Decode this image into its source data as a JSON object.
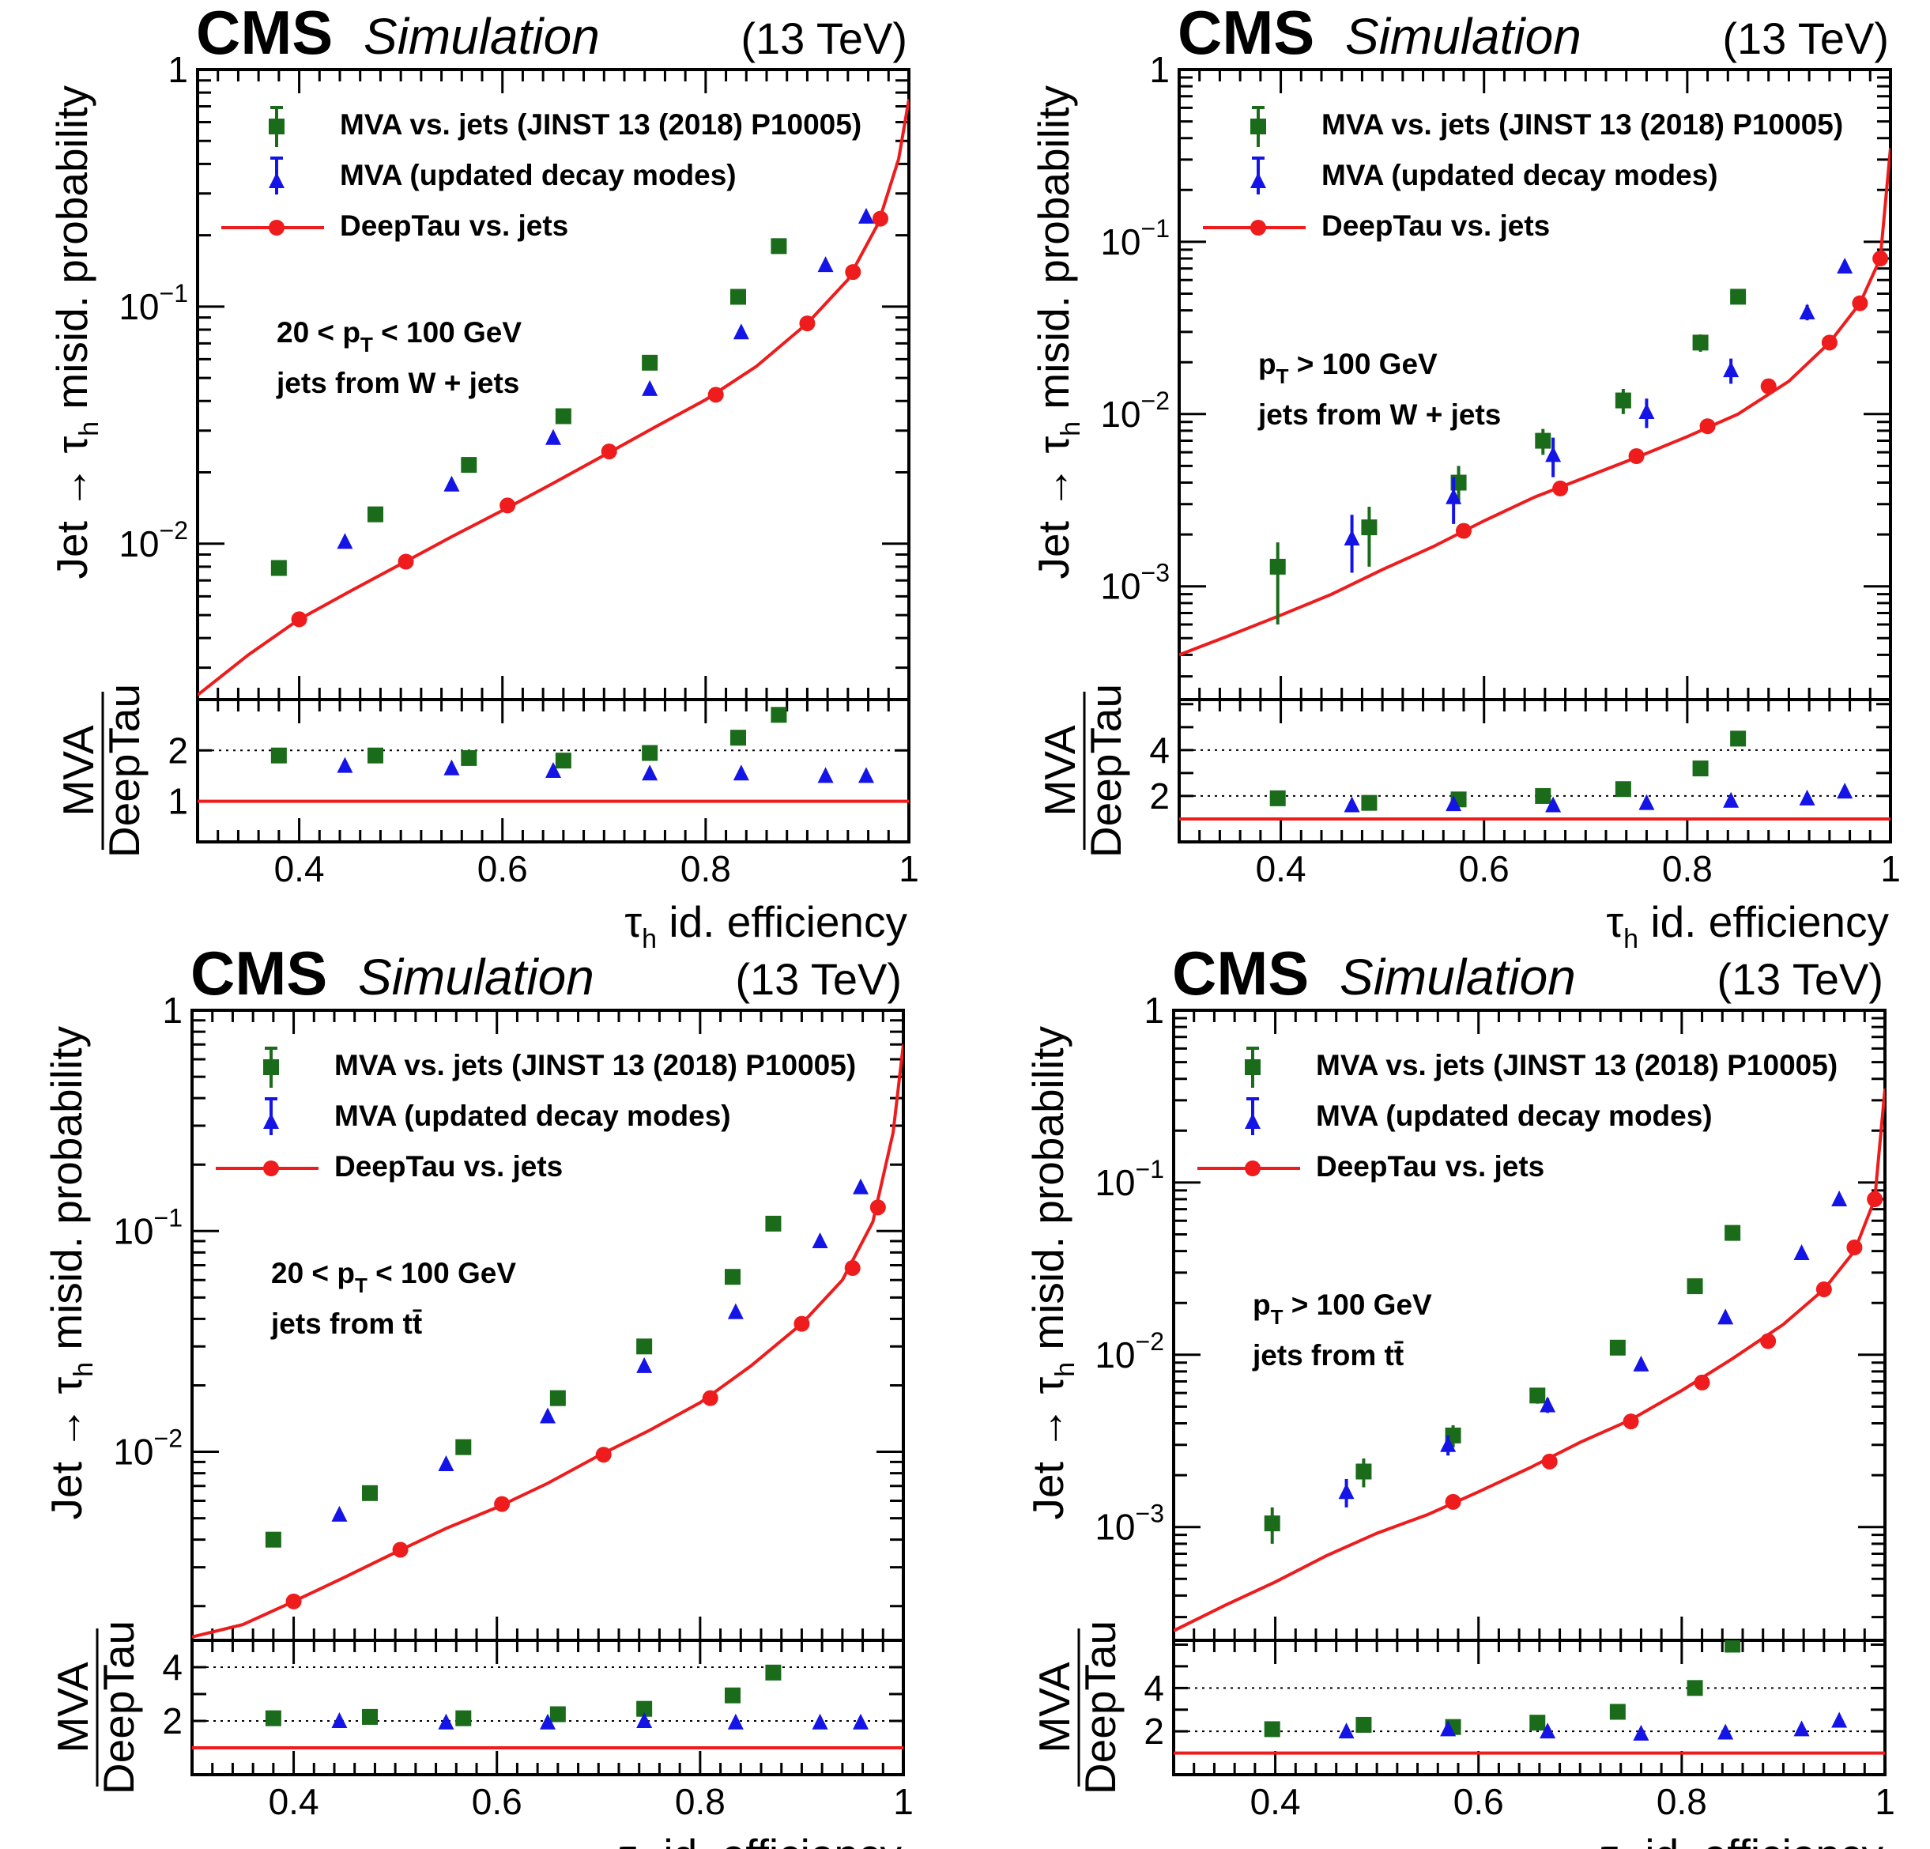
{
  "page": {
    "cms_label": "CMS",
    "simulation_label": "Simulation",
    "energy_label": "(13 TeV)"
  },
  "legend": {
    "mva_label": "MVA vs. jets (JINST 13 (2018) P10005)",
    "updated_label": "MVA (updated decay modes)",
    "deeptau_label": "DeepTau vs. jets"
  },
  "axes": {
    "xlabel_symbol": "τ",
    "xlabel_sub": "h",
    "xlabel_rest": " id. efficiency",
    "ylabel_pre": "Jet → τ",
    "ylabel_sub": "h",
    "ylabel_rest": " misid. probability",
    "ratio_num": "MVA",
    "ratio_den": "DeepTau"
  },
  "colors": {
    "mva": "#1a6b1a",
    "updated": "#1414e6",
    "deeptau": "#ee1c1c"
  },
  "chart_data": [
    {
      "type": "scatter",
      "y_scale": "log",
      "xlim": [
        0.3,
        1.0
      ],
      "ylim": [
        0.0022,
        1.0
      ],
      "ratio_ylim": [
        0.2,
        3.0
      ],
      "y_ticks": [
        {
          "pre": "1",
          "exp": ""
        },
        {
          "pre": "10",
          "exp": "−1"
        },
        {
          "pre": "10",
          "exp": "−2"
        }
      ],
      "y_tick_values": [
        1,
        0.1,
        0.01
      ],
      "x_ticks": [
        "0.4",
        "0.6",
        "0.8",
        "1"
      ],
      "x_tick_values": [
        0.4,
        0.6,
        0.8,
        1.0
      ],
      "ratio_ticks": [
        "2",
        "1"
      ],
      "ratio_tick_values": [
        2,
        1
      ],
      "ratio_dotted": [
        2
      ],
      "annotation": {
        "pt_pre": "20 < p",
        "pt_sub": "T",
        "pt_post": " < 100 GeV",
        "jets": "jets from W + jets"
      },
      "series": [
        {
          "name": "MVA vs. jets (JINST 13 (2018) P10005)",
          "marker": "square",
          "x": [
            0.38,
            0.475,
            0.567,
            0.66,
            0.745,
            0.832,
            0.872
          ],
          "y": [
            0.0079,
            0.0133,
            0.0215,
            0.0345,
            0.058,
            0.11,
            0.18
          ],
          "ratio": [
            1.9,
            1.9,
            1.85,
            1.8,
            1.95,
            2.25,
            2.7
          ]
        },
        {
          "name": "MVA (updated decay modes)",
          "marker": "triangle",
          "x": [
            0.445,
            0.55,
            0.65,
            0.745,
            0.835,
            0.918,
            0.958
          ],
          "y": [
            0.0102,
            0.0178,
            0.028,
            0.045,
            0.078,
            0.15,
            0.24
          ],
          "ratio": [
            1.7,
            1.65,
            1.6,
            1.55,
            1.55,
            1.5,
            1.5
          ]
        },
        {
          "name": "DeepTau vs. jets",
          "marker": "circle-line",
          "x": [
            0.4,
            0.505,
            0.605,
            0.705,
            0.81,
            0.9,
            0.945,
            0.972
          ],
          "y": [
            0.0048,
            0.0084,
            0.0145,
            0.0245,
            0.0425,
            0.085,
            0.14,
            0.235
          ],
          "curve_x": [
            0.3,
            0.35,
            0.4,
            0.45,
            0.5,
            0.55,
            0.6,
            0.65,
            0.7,
            0.75,
            0.8,
            0.85,
            0.9,
            0.94,
            0.97,
            0.99,
            1.0
          ],
          "curve_y": [
            0.0023,
            0.0034,
            0.0048,
            0.0063,
            0.0082,
            0.0107,
            0.0138,
            0.018,
            0.0236,
            0.031,
            0.0405,
            0.056,
            0.085,
            0.13,
            0.225,
            0.42,
            0.75
          ]
        }
      ]
    },
    {
      "type": "scatter",
      "y_scale": "log",
      "xlim": [
        0.3,
        1.0
      ],
      "ylim": [
        0.00022,
        1.0
      ],
      "ratio_ylim": [
        0.0,
        6.2
      ],
      "y_ticks": [
        {
          "pre": "1",
          "exp": ""
        },
        {
          "pre": "10",
          "exp": "−1"
        },
        {
          "pre": "10",
          "exp": "−2"
        },
        {
          "pre": "10",
          "exp": "−3"
        }
      ],
      "y_tick_values": [
        1,
        0.1,
        0.01,
        0.001
      ],
      "x_ticks": [
        "0.4",
        "0.6",
        "0.8",
        "1"
      ],
      "x_tick_values": [
        0.4,
        0.6,
        0.8,
        1.0
      ],
      "ratio_ticks": [
        "4",
        "2"
      ],
      "ratio_tick_values": [
        4,
        2
      ],
      "ratio_dotted": [
        4,
        2
      ],
      "annotation": {
        "pt_pre": "p",
        "pt_sub": "T",
        "pt_post": " > 100 GeV",
        "jets": "jets from W + jets"
      },
      "series": [
        {
          "name": "MVA vs. jets (JINST 13 (2018) P10005)",
          "marker": "square",
          "x": [
            0.397,
            0.487,
            0.575,
            0.658,
            0.737,
            0.813,
            0.85
          ],
          "y": [
            0.0013,
            0.0022,
            0.004,
            0.007,
            0.012,
            0.026,
            0.048
          ],
          "err_lo": [
            0.0007,
            0.0009,
            0.001,
            0.0012,
            0.002,
            0.003,
            0.004
          ],
          "err_hi": [
            0.0005,
            0.0007,
            0.001,
            0.0012,
            0.002,
            0.003,
            0.004
          ],
          "ratio": [
            1.9,
            1.7,
            1.85,
            2.0,
            2.3,
            3.2,
            4.5
          ]
        },
        {
          "name": "MVA (updated decay modes)",
          "marker": "triangle",
          "x": [
            0.47,
            0.57,
            0.668,
            0.76,
            0.843,
            0.918,
            0.955
          ],
          "y": [
            0.0019,
            0.0033,
            0.0058,
            0.0103,
            0.018,
            0.039,
            0.072
          ],
          "err_lo": [
            0.0007,
            0.001,
            0.0015,
            0.002,
            0.003,
            0.004,
            0.006
          ],
          "err_hi": [
            0.0007,
            0.001,
            0.0015,
            0.002,
            0.003,
            0.004,
            0.006
          ],
          "ratio": [
            1.6,
            1.65,
            1.6,
            1.7,
            1.8,
            1.9,
            2.2
          ]
        },
        {
          "name": "DeepTau vs. jets",
          "marker": "circle-line",
          "x": [
            0.58,
            0.675,
            0.75,
            0.82,
            0.88,
            0.94,
            0.97,
            0.99
          ],
          "y": [
            0.0021,
            0.0037,
            0.0057,
            0.0085,
            0.0145,
            0.026,
            0.044,
            0.08
          ],
          "curve_x": [
            0.3,
            0.35,
            0.4,
            0.45,
            0.5,
            0.55,
            0.6,
            0.65,
            0.7,
            0.75,
            0.8,
            0.85,
            0.9,
            0.94,
            0.97,
            0.99,
            1.0
          ],
          "curve_y": [
            0.0004,
            0.00052,
            0.00068,
            0.0009,
            0.00125,
            0.0017,
            0.0024,
            0.0033,
            0.0043,
            0.0056,
            0.0074,
            0.01,
            0.0155,
            0.026,
            0.044,
            0.08,
            0.35
          ]
        }
      ]
    },
    {
      "type": "scatter",
      "y_scale": "log",
      "xlim": [
        0.3,
        1.0
      ],
      "ylim": [
        0.0014,
        1.0
      ],
      "ratio_ylim": [
        0.0,
        5.0
      ],
      "y_ticks": [
        {
          "pre": "1",
          "exp": ""
        },
        {
          "pre": "10",
          "exp": "−1"
        },
        {
          "pre": "10",
          "exp": "−2"
        }
      ],
      "y_tick_values": [
        1,
        0.1,
        0.01
      ],
      "x_ticks": [
        "0.4",
        "0.6",
        "0.8",
        "1"
      ],
      "x_tick_values": [
        0.4,
        0.6,
        0.8,
        1.0
      ],
      "ratio_ticks": [
        "4",
        "2"
      ],
      "ratio_tick_values": [
        4,
        2
      ],
      "ratio_dotted": [
        4,
        2
      ],
      "annotation": {
        "pt_pre": "20 < p",
        "pt_sub": "T",
        "pt_post": " < 100 GeV",
        "jets": "jets from tt̄"
      },
      "series": [
        {
          "name": "MVA vs. jets (JINST 13 (2018) P10005)",
          "marker": "square",
          "x": [
            0.38,
            0.475,
            0.567,
            0.66,
            0.745,
            0.832,
            0.872
          ],
          "y": [
            0.004,
            0.0065,
            0.0105,
            0.0175,
            0.03,
            0.062,
            0.108
          ],
          "ratio": [
            2.1,
            2.15,
            2.1,
            2.25,
            2.45,
            2.95,
            3.8
          ]
        },
        {
          "name": "MVA (updated decay modes)",
          "marker": "triangle",
          "x": [
            0.445,
            0.55,
            0.65,
            0.745,
            0.835,
            0.918,
            0.958
          ],
          "y": [
            0.0052,
            0.0088,
            0.0145,
            0.0245,
            0.043,
            0.09,
            0.158
          ],
          "ratio": [
            2.0,
            1.95,
            1.95,
            2.0,
            1.95,
            1.95,
            1.95
          ]
        },
        {
          "name": "DeepTau vs. jets",
          "marker": "circle-line",
          "x": [
            0.4,
            0.505,
            0.605,
            0.705,
            0.81,
            0.9,
            0.95,
            0.975
          ],
          "y": [
            0.0021,
            0.0036,
            0.0058,
            0.0097,
            0.0175,
            0.038,
            0.068,
            0.128
          ],
          "curve_x": [
            0.3,
            0.35,
            0.4,
            0.45,
            0.5,
            0.55,
            0.6,
            0.65,
            0.7,
            0.75,
            0.8,
            0.85,
            0.9,
            0.94,
            0.97,
            0.99,
            1.0
          ],
          "curve_y": [
            0.00145,
            0.00165,
            0.0021,
            0.0027,
            0.0035,
            0.0045,
            0.0056,
            0.0072,
            0.0096,
            0.0125,
            0.0167,
            0.0245,
            0.038,
            0.06,
            0.11,
            0.28,
            0.7
          ]
        }
      ]
    },
    {
      "type": "scatter",
      "y_scale": "log",
      "xlim": [
        0.3,
        1.0
      ],
      "ylim": [
        0.00022,
        1.0
      ],
      "ratio_ylim": [
        0.0,
        6.2
      ],
      "y_ticks": [
        {
          "pre": "1",
          "exp": ""
        },
        {
          "pre": "10",
          "exp": "−1"
        },
        {
          "pre": "10",
          "exp": "−2"
        },
        {
          "pre": "10",
          "exp": "−3"
        }
      ],
      "y_tick_values": [
        1,
        0.1,
        0.01,
        0.001
      ],
      "x_ticks": [
        "0.4",
        "0.6",
        "0.8",
        "1"
      ],
      "x_tick_values": [
        0.4,
        0.6,
        0.8,
        1.0
      ],
      "ratio_ticks": [
        "4",
        "2"
      ],
      "ratio_tick_values": [
        4,
        2
      ],
      "ratio_dotted": [
        4,
        2
      ],
      "annotation": {
        "pt_pre": "p",
        "pt_sub": "T",
        "pt_post": " > 100 GeV",
        "jets": "jets from tt̄"
      },
      "series": [
        {
          "name": "MVA vs. jets (JINST 13 (2018) P10005)",
          "marker": "square",
          "x": [
            0.397,
            0.487,
            0.575,
            0.658,
            0.737,
            0.813,
            0.85
          ],
          "y": [
            0.00105,
            0.0021,
            0.0034,
            0.0058,
            0.011,
            0.025,
            0.051
          ],
          "err_lo": [
            0.00025,
            0.0004,
            0.0005,
            0.0006,
            0.001,
            0.002,
            0.003
          ],
          "err_hi": [
            0.00025,
            0.0004,
            0.0005,
            0.0006,
            0.001,
            0.002,
            0.003
          ],
          "ratio": [
            2.1,
            2.3,
            2.2,
            2.4,
            2.9,
            4.0,
            6.0
          ]
        },
        {
          "name": "MVA (updated decay modes)",
          "marker": "triangle",
          "x": [
            0.47,
            0.57,
            0.668,
            0.76,
            0.843,
            0.918,
            0.955
          ],
          "y": [
            0.0016,
            0.003,
            0.0051,
            0.0088,
            0.0165,
            0.039,
            0.08
          ],
          "err_lo": [
            0.0003,
            0.0004,
            0.0005,
            0.0007,
            0.001,
            0.002,
            0.003
          ],
          "err_hi": [
            0.0003,
            0.0004,
            0.0005,
            0.0007,
            0.001,
            0.002,
            0.003
          ],
          "ratio": [
            2.0,
            2.1,
            2.0,
            1.9,
            1.95,
            2.1,
            2.5
          ]
        },
        {
          "name": "DeepTau vs. jets",
          "marker": "circle-line",
          "x": [
            0.575,
            0.67,
            0.75,
            0.82,
            0.885,
            0.94,
            0.97,
            0.99
          ],
          "y": [
            0.0014,
            0.0024,
            0.0041,
            0.0069,
            0.012,
            0.024,
            0.042,
            0.08
          ],
          "curve_x": [
            0.3,
            0.35,
            0.4,
            0.45,
            0.5,
            0.55,
            0.6,
            0.65,
            0.7,
            0.75,
            0.8,
            0.85,
            0.9,
            0.94,
            0.97,
            0.99,
            1.0
          ],
          "curve_y": [
            0.00025,
            0.00035,
            0.00048,
            0.00068,
            0.00092,
            0.00118,
            0.0016,
            0.0022,
            0.0031,
            0.0042,
            0.0062,
            0.0095,
            0.015,
            0.024,
            0.04,
            0.08,
            0.35
          ]
        }
      ]
    }
  ]
}
